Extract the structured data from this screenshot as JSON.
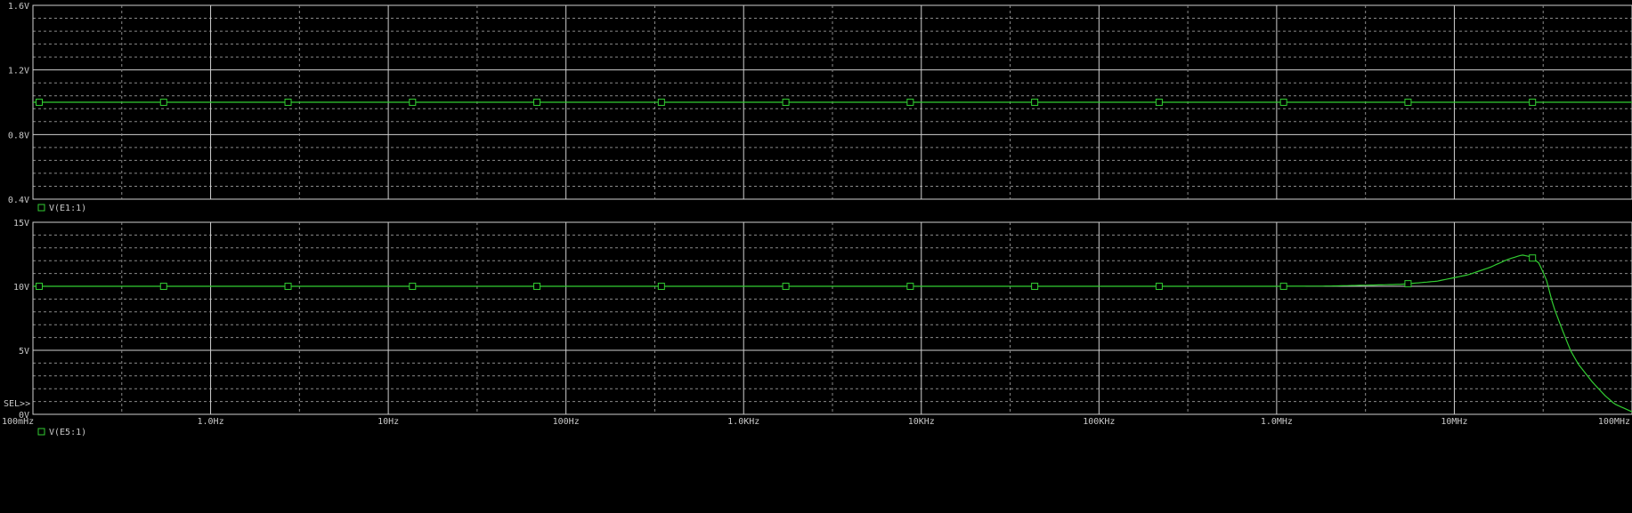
{
  "chart_data": [
    {
      "type": "line",
      "panel": "top",
      "xscale": "log",
      "xlim": [
        0.1,
        100000000
      ],
      "ylim": [
        0.4,
        1.6
      ],
      "yticks": [
        "1.6V",
        "1.2V",
        "0.8V",
        "0.4V"
      ],
      "ytick_values": [
        1.6,
        1.2,
        0.8,
        0.4
      ],
      "grid": true,
      "series": [
        {
          "name": "V(E1:1)",
          "color": "#32cd32",
          "marker": "square",
          "x": [
            0.1,
            100000000
          ],
          "y": [
            1.0,
            1.0
          ]
        }
      ]
    },
    {
      "type": "line",
      "panel": "bottom",
      "xscale": "log",
      "xlim": [
        0.1,
        100000000
      ],
      "ylim": [
        0,
        15
      ],
      "yticks": [
        "15V",
        "10V",
        "5V",
        "0V"
      ],
      "ytick_values": [
        15,
        10,
        5,
        0
      ],
      "grid": true,
      "sel_marker": "SEL>>",
      "xticks": [
        "100mHz",
        "1.0Hz",
        "10Hz",
        "100Hz",
        "1.0KHz",
        "10KHz",
        "100KHz",
        "1.0MHz",
        "10MHz",
        "100MHz"
      ],
      "xtick_values": [
        0.1,
        1,
        10,
        100,
        1000,
        10000,
        100000,
        1000000,
        10000000,
        100000000
      ],
      "series": [
        {
          "name": "V(E5:1)",
          "color": "#32cd32",
          "marker": "square",
          "x": [
            0.1,
            1000000,
            2000000,
            5000000,
            8000000,
            12000000,
            16000000,
            20000000,
            24000000,
            27000000,
            30000000,
            33000000,
            36000000,
            40000000,
            45000000,
            50000000,
            60000000,
            70000000,
            80000000,
            100000000
          ],
          "y": [
            10.0,
            10.0,
            10.02,
            10.15,
            10.4,
            10.9,
            11.5,
            12.1,
            12.45,
            12.3,
            11.8,
            10.5,
            8.5,
            6.8,
            5.0,
            3.9,
            2.5,
            1.5,
            0.8,
            0.2
          ]
        }
      ]
    }
  ]
}
